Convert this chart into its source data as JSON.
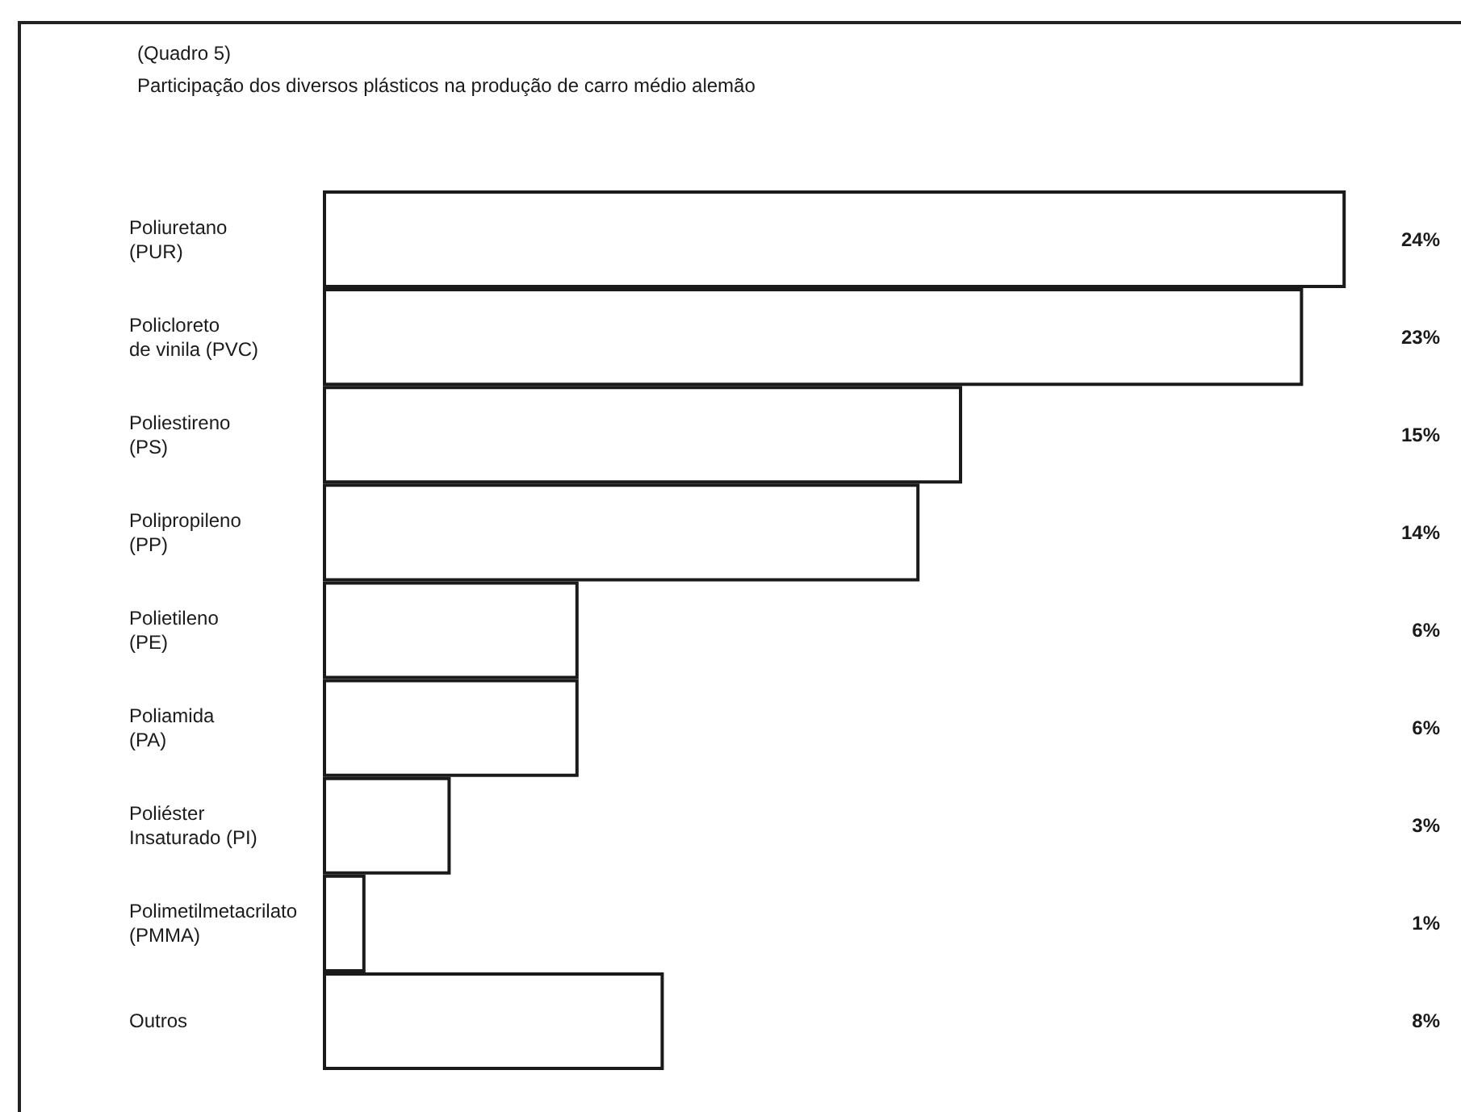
{
  "chart_data": {
    "type": "bar",
    "orientation": "horizontal",
    "title": "(Quadro 5)",
    "subtitle": "Participação dos diversos plásticos na produção de carro médio alemão",
    "categories": [
      "Poliuretano\n(PUR)",
      "Policloreto\nde vinila (PVC)",
      "Poliestireno\n(PS)",
      "Polipropileno\n(PP)",
      "Polietileno\n(PE)",
      "Poliamida\n(PA)",
      "Poliéster\nInsaturado (PI)",
      "Polimetilmetacrilato\n(PMMA)",
      "Outros"
    ],
    "values": [
      24,
      23,
      15,
      14,
      6,
      6,
      3,
      1,
      8
    ],
    "value_labels": [
      "24%",
      "23%",
      "15%",
      "14%",
      "6%",
      "6%",
      "3%",
      "1%",
      "8%"
    ],
    "color": "#ffffff",
    "tick_labels": "y"
  }
}
